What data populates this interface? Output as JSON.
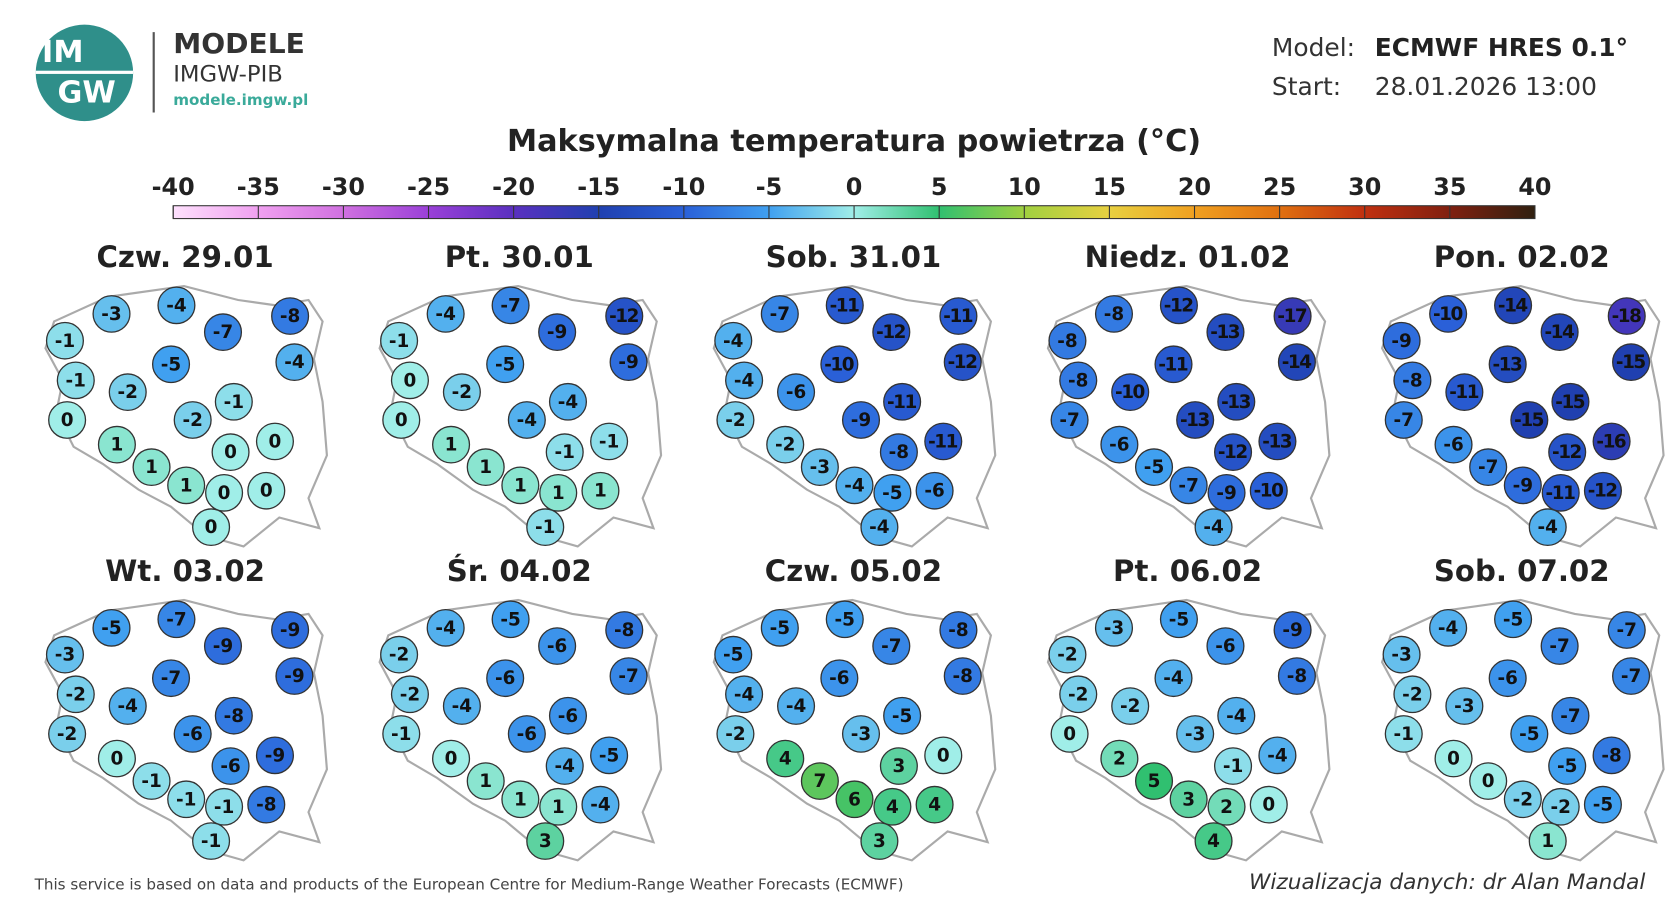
{
  "header": {
    "logo_top": "IM",
    "logo_bottom": "GW",
    "brand": "MODELE",
    "org": "IMGW-PIB",
    "url": "modele.imgw.pl",
    "model_label": "Model:",
    "model": "ECMWF HRES 0.1°",
    "start_label": "Start:",
    "start": "28.01.2026 13:00"
  },
  "title": "Maksymalna temperatura powietrza (°C)",
  "colorbar": {
    "ticks": [
      -40,
      -35,
      -30,
      -25,
      -20,
      -15,
      -10,
      -5,
      0,
      5,
      10,
      15,
      20,
      25,
      30,
      35,
      40
    ],
    "colors": [
      "#fde0fc",
      "#f0a0f0",
      "#d070e0",
      "#9a40d8",
      "#5a30c0",
      "#2040b0",
      "#2a60d8",
      "#40a0f0",
      "#a0eee8",
      "#30c070",
      "#a0d040",
      "#e8d040",
      "#f0a020",
      "#e07010",
      "#c03010",
      "#802010",
      "#302010"
    ]
  },
  "maps": [
    {
      "title": "Czw. 29.01",
      "values": [
        -3,
        -4,
        -8,
        -1,
        -7,
        -5,
        -4,
        -1,
        -2,
        -1,
        0,
        -2,
        1,
        0,
        0,
        1,
        1,
        0,
        0,
        0
      ]
    },
    {
      "title": "Pt. 30.01",
      "values": [
        -4,
        -7,
        -12,
        -1,
        -9,
        -5,
        -9,
        0,
        -2,
        -4,
        0,
        -4,
        1,
        -1,
        -1,
        1,
        1,
        1,
        1,
        -1
      ]
    },
    {
      "title": "Sob. 31.01",
      "values": [
        -7,
        -11,
        -11,
        -4,
        -12,
        -10,
        -12,
        -4,
        -6,
        -11,
        -2,
        -9,
        -2,
        -11,
        -8,
        -3,
        -4,
        -5,
        -6,
        -4
      ]
    },
    {
      "title": "Niedz. 01.02",
      "values": [
        -8,
        -12,
        -17,
        -8,
        -13,
        -11,
        -14,
        -8,
        -10,
        -13,
        -7,
        -13,
        -6,
        -13,
        -12,
        -5,
        -7,
        -9,
        -10,
        -4
      ]
    },
    {
      "title": "Pon. 02.02",
      "values": [
        -10,
        -14,
        -18,
        -9,
        -14,
        -13,
        -15,
        -8,
        -11,
        -15,
        -7,
        -15,
        -6,
        -16,
        -12,
        -7,
        -9,
        -11,
        -12,
        -4
      ]
    },
    {
      "title": "Wt. 03.02",
      "values": [
        -5,
        -7,
        -9,
        -3,
        -9,
        -7,
        -9,
        -2,
        -4,
        -8,
        -2,
        -6,
        0,
        -9,
        -6,
        -1,
        -1,
        -1,
        -8,
        -1
      ]
    },
    {
      "title": "Śr. 04.02",
      "values": [
        -4,
        -5,
        -8,
        -2,
        -6,
        -6,
        -7,
        -2,
        -4,
        -6,
        -1,
        -6,
        0,
        -5,
        -4,
        1,
        1,
        1,
        -4,
        3
      ]
    },
    {
      "title": "Czw. 05.02",
      "values": [
        -5,
        -5,
        -8,
        -5,
        -7,
        -6,
        -8,
        -4,
        -4,
        -5,
        -2,
        -3,
        4,
        0,
        3,
        7,
        6,
        4,
        4,
        3
      ]
    },
    {
      "title": "Pt. 06.02",
      "values": [
        -3,
        -5,
        -9,
        -2,
        -6,
        -4,
        -8,
        -2,
        -2,
        -4,
        0,
        -3,
        2,
        -4,
        -1,
        5,
        3,
        2,
        0,
        4
      ]
    },
    {
      "title": "Sob. 07.02",
      "values": [
        -4,
        -5,
        -7,
        -3,
        -7,
        -6,
        -7,
        -2,
        -3,
        -7,
        -1,
        -5,
        0,
        -8,
        -5,
        0,
        -2,
        -2,
        -5,
        1
      ]
    }
  ],
  "footer": {
    "source": "This service is based on data and products of the European Centre for Medium-Range Weather Forecasts (ECMWF)",
    "credit": "Wizualizacja danych: dr Alan Mandal"
  }
}
